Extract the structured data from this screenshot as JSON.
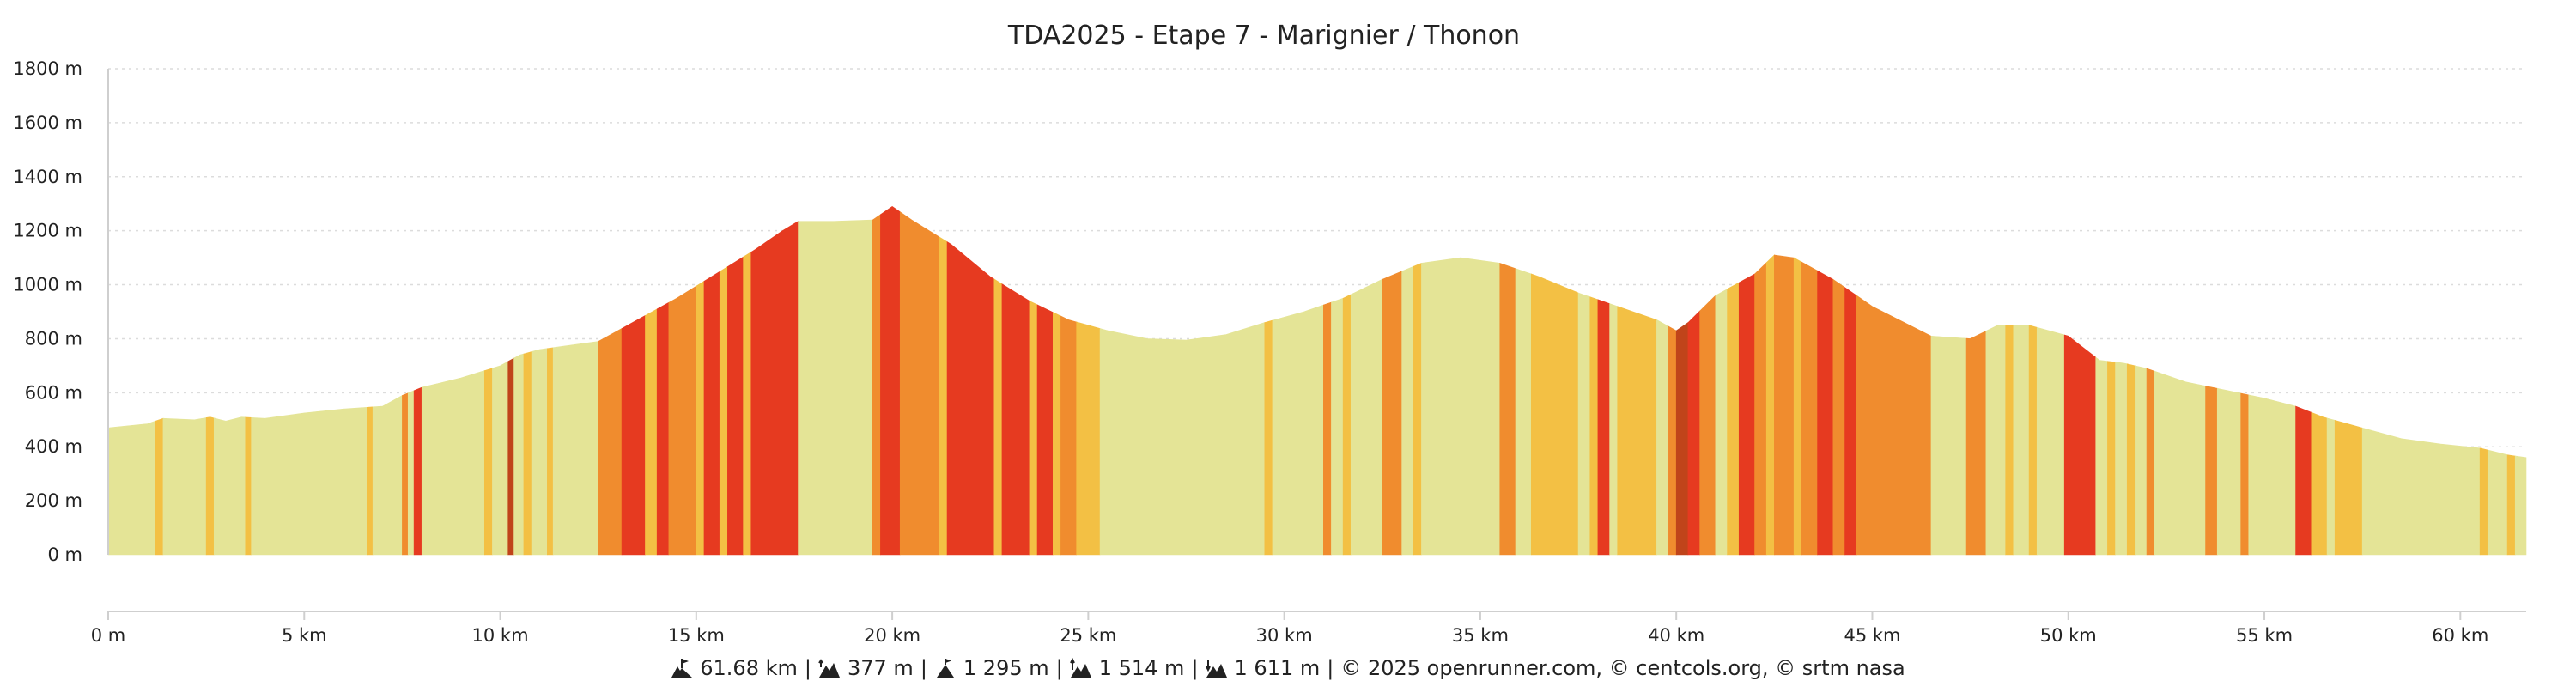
{
  "chart_data": {
    "type": "area",
    "title": "TDA2025 - Etape 7 - Marignier / Thonon",
    "xlabel": "",
    "ylabel": "",
    "xlim": [
      0,
      61.68
    ],
    "ylim": [
      0,
      1800
    ],
    "y_ticks": [
      0,
      200,
      400,
      600,
      800,
      1000,
      1200,
      1400,
      1600,
      1800
    ],
    "y_tick_labels": [
      "0 m",
      "200 m",
      "400 m",
      "600 m",
      "800 m",
      "1000 m",
      "1200 m",
      "1400 m",
      "1600 m",
      "1800 m"
    ],
    "x_ticks": [
      0,
      5,
      10,
      15,
      20,
      25,
      30,
      35,
      40,
      45,
      50,
      55,
      60
    ],
    "x_tick_labels": [
      "0 m",
      "5 km",
      "10 km",
      "15 km",
      "20 km",
      "25 km",
      "30 km",
      "35 km",
      "40 km",
      "45 km",
      "50 km",
      "55 km",
      "60 km"
    ],
    "grid": true,
    "profile_km": [
      0,
      1,
      1.4,
      2.2,
      2.6,
      3,
      3.4,
      4,
      5,
      6,
      7,
      7.5,
      8,
      9,
      10,
      10.5,
      11,
      12,
      12.5,
      13.5,
      14.5,
      15.5,
      16.5,
      17.2,
      17.6,
      18.5,
      19.5,
      20,
      20.5,
      21.5,
      22.5,
      23.5,
      24.5,
      25.5,
      26.5,
      27.5,
      28.5,
      29.5,
      30.5,
      31.5,
      32.5,
      33.5,
      34.5,
      35.5,
      36.5,
      37.5,
      38.5,
      39.5,
      40,
      40.3,
      41,
      42,
      42.5,
      43,
      44,
      45,
      46.5,
      47.5,
      48.2,
      49,
      50,
      50.8,
      51.4,
      52,
      53,
      54,
      55,
      55.8,
      56.5,
      57.5,
      58.5,
      59.5,
      60.5,
      61.2,
      61.68
    ],
    "profile_elev": [
      470,
      485,
      505,
      500,
      510,
      495,
      510,
      505,
      525,
      540,
      550,
      590,
      620,
      655,
      700,
      740,
      760,
      780,
      790,
      870,
      950,
      1040,
      1130,
      1200,
      1235,
      1235,
      1240,
      1290,
      1240,
      1150,
      1030,
      940,
      870,
      830,
      800,
      795,
      815,
      860,
      900,
      950,
      1020,
      1080,
      1100,
      1080,
      1030,
      970,
      920,
      870,
      830,
      860,
      960,
      1040,
      1110,
      1100,
      1020,
      920,
      810,
      800,
      850,
      850,
      810,
      720,
      710,
      690,
      640,
      610,
      580,
      550,
      510,
      470,
      430,
      410,
      395,
      370,
      360
    ],
    "segments": [
      {
        "from": 0,
        "to": 1.2,
        "color": "#e4e496"
      },
      {
        "from": 1.2,
        "to": 1.4,
        "color": "#f3c044"
      },
      {
        "from": 1.4,
        "to": 2.5,
        "color": "#e4e496"
      },
      {
        "from": 2.5,
        "to": 2.7,
        "color": "#f3c044"
      },
      {
        "from": 2.7,
        "to": 3.5,
        "color": "#e4e496"
      },
      {
        "from": 3.5,
        "to": 3.65,
        "color": "#f3c044"
      },
      {
        "from": 3.65,
        "to": 6.6,
        "color": "#e4e496"
      },
      {
        "from": 6.6,
        "to": 6.75,
        "color": "#f3c044"
      },
      {
        "from": 6.75,
        "to": 7.5,
        "color": "#e4e496"
      },
      {
        "from": 7.5,
        "to": 7.65,
        "color": "#f08c2e"
      },
      {
        "from": 7.65,
        "to": 7.8,
        "color": "#e4e496"
      },
      {
        "from": 7.8,
        "to": 8.0,
        "color": "#e63a20"
      },
      {
        "from": 8.0,
        "to": 9.6,
        "color": "#e4e496"
      },
      {
        "from": 9.6,
        "to": 9.8,
        "color": "#f3c044"
      },
      {
        "from": 9.8,
        "to": 10.2,
        "color": "#e4e496"
      },
      {
        "from": 10.2,
        "to": 10.35,
        "color": "#c0441a"
      },
      {
        "from": 10.35,
        "to": 10.6,
        "color": "#e4e496"
      },
      {
        "from": 10.6,
        "to": 10.8,
        "color": "#f3c044"
      },
      {
        "from": 10.8,
        "to": 11.2,
        "color": "#e4e496"
      },
      {
        "from": 11.2,
        "to": 11.35,
        "color": "#f3c044"
      },
      {
        "from": 11.35,
        "to": 12.5,
        "color": "#e4e496"
      },
      {
        "from": 12.5,
        "to": 13.1,
        "color": "#f08c2e"
      },
      {
        "from": 13.1,
        "to": 13.7,
        "color": "#e63a20"
      },
      {
        "from": 13.7,
        "to": 14.0,
        "color": "#f3c044"
      },
      {
        "from": 14.0,
        "to": 14.3,
        "color": "#e63a20"
      },
      {
        "from": 14.3,
        "to": 15.0,
        "color": "#f08c2e"
      },
      {
        "from": 15.0,
        "to": 15.2,
        "color": "#f3c044"
      },
      {
        "from": 15.2,
        "to": 15.6,
        "color": "#e63a20"
      },
      {
        "from": 15.6,
        "to": 15.8,
        "color": "#f3c044"
      },
      {
        "from": 15.8,
        "to": 16.2,
        "color": "#e63a20"
      },
      {
        "from": 16.2,
        "to": 16.4,
        "color": "#f3c044"
      },
      {
        "from": 16.4,
        "to": 17.6,
        "color": "#e63a20"
      },
      {
        "from": 17.6,
        "to": 19.5,
        "color": "#e4e496"
      },
      {
        "from": 19.5,
        "to": 19.7,
        "color": "#f08c2e"
      },
      {
        "from": 19.7,
        "to": 20.2,
        "color": "#e63a20"
      },
      {
        "from": 20.2,
        "to": 21.2,
        "color": "#f08c2e"
      },
      {
        "from": 21.2,
        "to": 21.4,
        "color": "#f3c044"
      },
      {
        "from": 21.4,
        "to": 22.6,
        "color": "#e63a20"
      },
      {
        "from": 22.6,
        "to": 22.8,
        "color": "#f3c044"
      },
      {
        "from": 22.8,
        "to": 23.5,
        "color": "#e63a20"
      },
      {
        "from": 23.5,
        "to": 23.7,
        "color": "#f3c044"
      },
      {
        "from": 23.7,
        "to": 24.1,
        "color": "#e63a20"
      },
      {
        "from": 24.1,
        "to": 24.3,
        "color": "#f3c044"
      },
      {
        "from": 24.3,
        "to": 24.7,
        "color": "#f08c2e"
      },
      {
        "from": 24.7,
        "to": 25.3,
        "color": "#f3c044"
      },
      {
        "from": 25.3,
        "to": 29.5,
        "color": "#e4e496"
      },
      {
        "from": 29.5,
        "to": 29.7,
        "color": "#f3c044"
      },
      {
        "from": 29.7,
        "to": 31.0,
        "color": "#e4e496"
      },
      {
        "from": 31.0,
        "to": 31.2,
        "color": "#f08c2e"
      },
      {
        "from": 31.2,
        "to": 31.5,
        "color": "#e4e496"
      },
      {
        "from": 31.5,
        "to": 31.7,
        "color": "#f3c044"
      },
      {
        "from": 31.7,
        "to": 32.5,
        "color": "#e4e496"
      },
      {
        "from": 32.5,
        "to": 33.0,
        "color": "#f08c2e"
      },
      {
        "from": 33.0,
        "to": 33.3,
        "color": "#e4e496"
      },
      {
        "from": 33.3,
        "to": 33.5,
        "color": "#f3c044"
      },
      {
        "from": 33.5,
        "to": 35.5,
        "color": "#e4e496"
      },
      {
        "from": 35.5,
        "to": 35.9,
        "color": "#f08c2e"
      },
      {
        "from": 35.9,
        "to": 36.3,
        "color": "#e4e496"
      },
      {
        "from": 36.3,
        "to": 37.5,
        "color": "#f3c044"
      },
      {
        "from": 37.5,
        "to": 37.8,
        "color": "#e4e496"
      },
      {
        "from": 37.8,
        "to": 38.0,
        "color": "#f3c044"
      },
      {
        "from": 38.0,
        "to": 38.3,
        "color": "#e63a20"
      },
      {
        "from": 38.3,
        "to": 38.5,
        "color": "#e4e496"
      },
      {
        "from": 38.5,
        "to": 39.5,
        "color": "#f3c044"
      },
      {
        "from": 39.5,
        "to": 39.8,
        "color": "#e4e496"
      },
      {
        "from": 39.8,
        "to": 40.0,
        "color": "#f08c2e"
      },
      {
        "from": 40.0,
        "to": 40.3,
        "color": "#c0441a"
      },
      {
        "from": 40.3,
        "to": 40.6,
        "color": "#e63a20"
      },
      {
        "from": 40.6,
        "to": 41.0,
        "color": "#f08c2e"
      },
      {
        "from": 41.0,
        "to": 41.3,
        "color": "#e4e496"
      },
      {
        "from": 41.3,
        "to": 41.6,
        "color": "#f3c044"
      },
      {
        "from": 41.6,
        "to": 42.0,
        "color": "#e63a20"
      },
      {
        "from": 42.0,
        "to": 42.3,
        "color": "#f08c2e"
      },
      {
        "from": 42.3,
        "to": 42.5,
        "color": "#f3c044"
      },
      {
        "from": 42.5,
        "to": 43.0,
        "color": "#f08c2e"
      },
      {
        "from": 43.0,
        "to": 43.2,
        "color": "#f3c044"
      },
      {
        "from": 43.2,
        "to": 43.6,
        "color": "#f08c2e"
      },
      {
        "from": 43.6,
        "to": 44.0,
        "color": "#e63a20"
      },
      {
        "from": 44.0,
        "to": 44.3,
        "color": "#f08c2e"
      },
      {
        "from": 44.3,
        "to": 44.6,
        "color": "#e63a20"
      },
      {
        "from": 44.6,
        "to": 46.5,
        "color": "#f08c2e"
      },
      {
        "from": 46.5,
        "to": 47.4,
        "color": "#e4e496"
      },
      {
        "from": 47.4,
        "to": 47.9,
        "color": "#f08c2e"
      },
      {
        "from": 47.9,
        "to": 48.4,
        "color": "#e4e496"
      },
      {
        "from": 48.4,
        "to": 48.6,
        "color": "#f3c044"
      },
      {
        "from": 48.6,
        "to": 49.0,
        "color": "#e4e496"
      },
      {
        "from": 49.0,
        "to": 49.2,
        "color": "#f3c044"
      },
      {
        "from": 49.2,
        "to": 49.9,
        "color": "#e4e496"
      },
      {
        "from": 49.9,
        "to": 50.7,
        "color": "#e63a20"
      },
      {
        "from": 50.7,
        "to": 51.0,
        "color": "#e4e496"
      },
      {
        "from": 51.0,
        "to": 51.2,
        "color": "#f3c044"
      },
      {
        "from": 51.2,
        "to": 51.5,
        "color": "#e4e496"
      },
      {
        "from": 51.5,
        "to": 51.7,
        "color": "#f3c044"
      },
      {
        "from": 51.7,
        "to": 52.0,
        "color": "#e4e496"
      },
      {
        "from": 52.0,
        "to": 52.2,
        "color": "#f08c2e"
      },
      {
        "from": 52.2,
        "to": 53.5,
        "color": "#e4e496"
      },
      {
        "from": 53.5,
        "to": 53.8,
        "color": "#f08c2e"
      },
      {
        "from": 53.8,
        "to": 54.4,
        "color": "#e4e496"
      },
      {
        "from": 54.4,
        "to": 54.6,
        "color": "#f08c2e"
      },
      {
        "from": 54.6,
        "to": 55.8,
        "color": "#e4e496"
      },
      {
        "from": 55.8,
        "to": 56.2,
        "color": "#e63a20"
      },
      {
        "from": 56.2,
        "to": 56.6,
        "color": "#f3c044"
      },
      {
        "from": 56.6,
        "to": 56.8,
        "color": "#e4e496"
      },
      {
        "from": 56.8,
        "to": 57.5,
        "color": "#f3c044"
      },
      {
        "from": 57.5,
        "to": 60.5,
        "color": "#e4e496"
      },
      {
        "from": 60.5,
        "to": 60.7,
        "color": "#f3c044"
      },
      {
        "from": 60.7,
        "to": 61.2,
        "color": "#e4e496"
      },
      {
        "from": 61.2,
        "to": 61.4,
        "color": "#f3c044"
      },
      {
        "from": 61.4,
        "to": 61.68,
        "color": "#e4e496"
      }
    ]
  },
  "footer": {
    "distance": "61.68 km",
    "elevation_gain": "377 m",
    "max_altitude": "1 295 m",
    "stat_4": "1 514 m",
    "stat_5": "1 611 m",
    "credits": "© 2025 openrunner.com, © centcols.org, © srtm nasa",
    "separator": "|",
    "icons": [
      "distance-icon",
      "elevation-gain-icon",
      "summit-icon",
      "ascent-icon",
      "descent-icon"
    ]
  }
}
